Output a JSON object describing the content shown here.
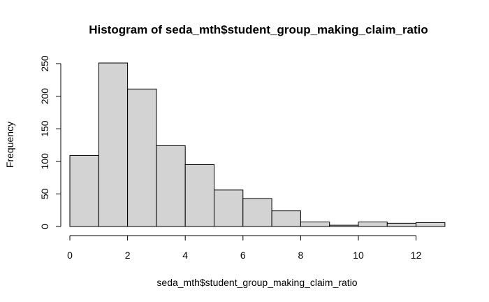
{
  "chart_data": {
    "type": "bar",
    "subtype": "histogram",
    "title": "Histogram of seda_mth$student_group_making_claim_ratio",
    "xlabel": "seda_mth$student_group_making_claim_ratio",
    "ylabel": "Frequency",
    "bins": [
      {
        "x0": 0,
        "x1": 1,
        "count": 109
      },
      {
        "x0": 1,
        "x1": 2,
        "count": 251
      },
      {
        "x0": 2,
        "x1": 3,
        "count": 211
      },
      {
        "x0": 3,
        "x1": 4,
        "count": 124
      },
      {
        "x0": 4,
        "x1": 5,
        "count": 95
      },
      {
        "x0": 5,
        "x1": 6,
        "count": 56
      },
      {
        "x0": 6,
        "x1": 7,
        "count": 43
      },
      {
        "x0": 7,
        "x1": 8,
        "count": 24
      },
      {
        "x0": 8,
        "x1": 9,
        "count": 7
      },
      {
        "x0": 9,
        "x1": 10,
        "count": 2
      },
      {
        "x0": 10,
        "x1": 11,
        "count": 7
      },
      {
        "x0": 11,
        "x1": 12,
        "count": 5
      },
      {
        "x0": 12,
        "x1": 13,
        "count": 6
      }
    ],
    "xticks": [
      0,
      2,
      4,
      6,
      8,
      10,
      12
    ],
    "yticks": [
      0,
      50,
      100,
      150,
      200,
      250
    ],
    "xlim": [
      0,
      13
    ],
    "ylim": [
      0,
      250
    ],
    "bar_color": "#d3d3d3",
    "grid": false
  }
}
